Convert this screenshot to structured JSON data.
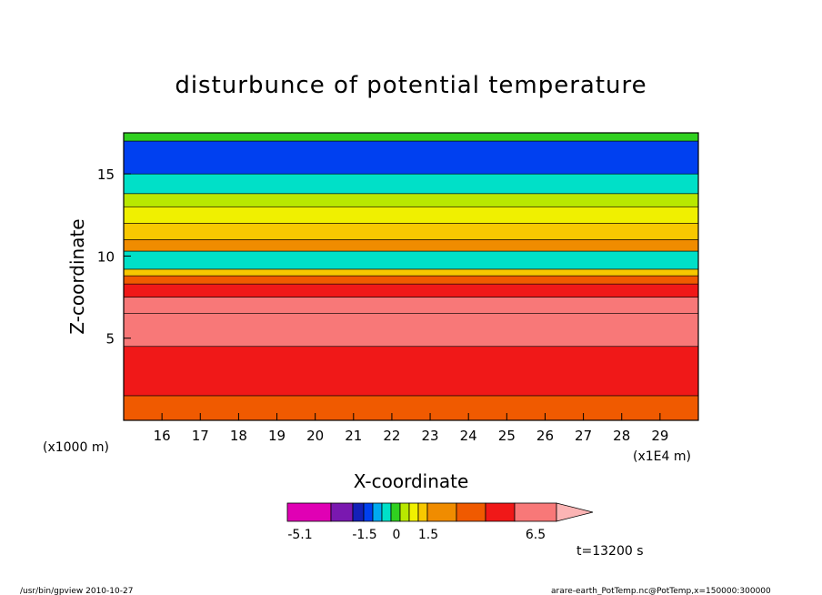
{
  "chart_data": {
    "type": "heatmap",
    "title": "disturbunce of potential temperature",
    "xlabel": "X-coordinate",
    "ylabel": "Z-coordinate",
    "x_unit": "(x1E4 m)",
    "y_unit": "(x1000 m)",
    "xlim": [
      15,
      30
    ],
    "ylim": [
      0,
      17.5
    ],
    "x_ticks": [
      "16",
      "17",
      "18",
      "19",
      "20",
      "21",
      "22",
      "23",
      "24",
      "25",
      "26",
      "27",
      "28",
      "29"
    ],
    "y_ticks": [
      "5",
      "10",
      "15"
    ],
    "colorbar": {
      "colors": [
        "#e000b4",
        "#7a18b0",
        "#1420b8",
        "#0040f0",
        "#00aaf0",
        "#00e0c8",
        "#30d020",
        "#b8e800",
        "#f0f000",
        "#f8c800",
        "#f08c00",
        "#f05a00",
        "#f01818",
        "#f87878",
        "#fbb4b4"
      ],
      "tick_labels": [
        "-5.1",
        "-1.5",
        "0",
        "1.5",
        "6.5"
      ],
      "tick_values": [
        -5.1,
        -1.5,
        0,
        1.5,
        6.5
      ]
    },
    "regions": [
      {
        "zmin": 0.0,
        "zmax": 1.5,
        "level": 1.5
      },
      {
        "zmin": 1.5,
        "zmax": 4.5,
        "level": 2.5
      },
      {
        "zmin": 4.5,
        "zmax": 6.5,
        "level": 3.5
      },
      {
        "zmin": 6.5,
        "zmax": 7.5,
        "level": 4.0
      },
      {
        "zmin": 7.5,
        "zmax": 8.3,
        "level": 2.5
      },
      {
        "zmin": 8.3,
        "zmax": 8.8,
        "level": 1.5
      },
      {
        "zmin": 8.8,
        "zmax": 9.2,
        "level": 0.5
      },
      {
        "zmin": 9.2,
        "zmax": 10.3,
        "level": -1.5
      },
      {
        "zmin": 10.3,
        "zmax": 11.0,
        "level": 1.0
      },
      {
        "zmin": 11.0,
        "zmax": 12.0,
        "level": 0.5
      },
      {
        "zmin": 12.0,
        "zmax": 13.0,
        "level": 0.0
      },
      {
        "zmin": 13.0,
        "zmax": 13.8,
        "level": -0.5
      },
      {
        "zmin": 13.8,
        "zmax": 15.0,
        "level": -1.5
      },
      {
        "zmin": 15.0,
        "zmax": 17.0,
        "level": -2.5
      },
      {
        "zmin": 17.0,
        "zmax": 17.5,
        "level": -1.0
      }
    ],
    "time_label": "t=13200 s"
  },
  "footer": {
    "left": "/usr/bin/gpview   2010-10-27",
    "right": "arare-earth_PotTemp.nc@PotTemp,x=150000:300000"
  },
  "colors": {
    "background": "#ffffff",
    "axis": "#000000"
  }
}
